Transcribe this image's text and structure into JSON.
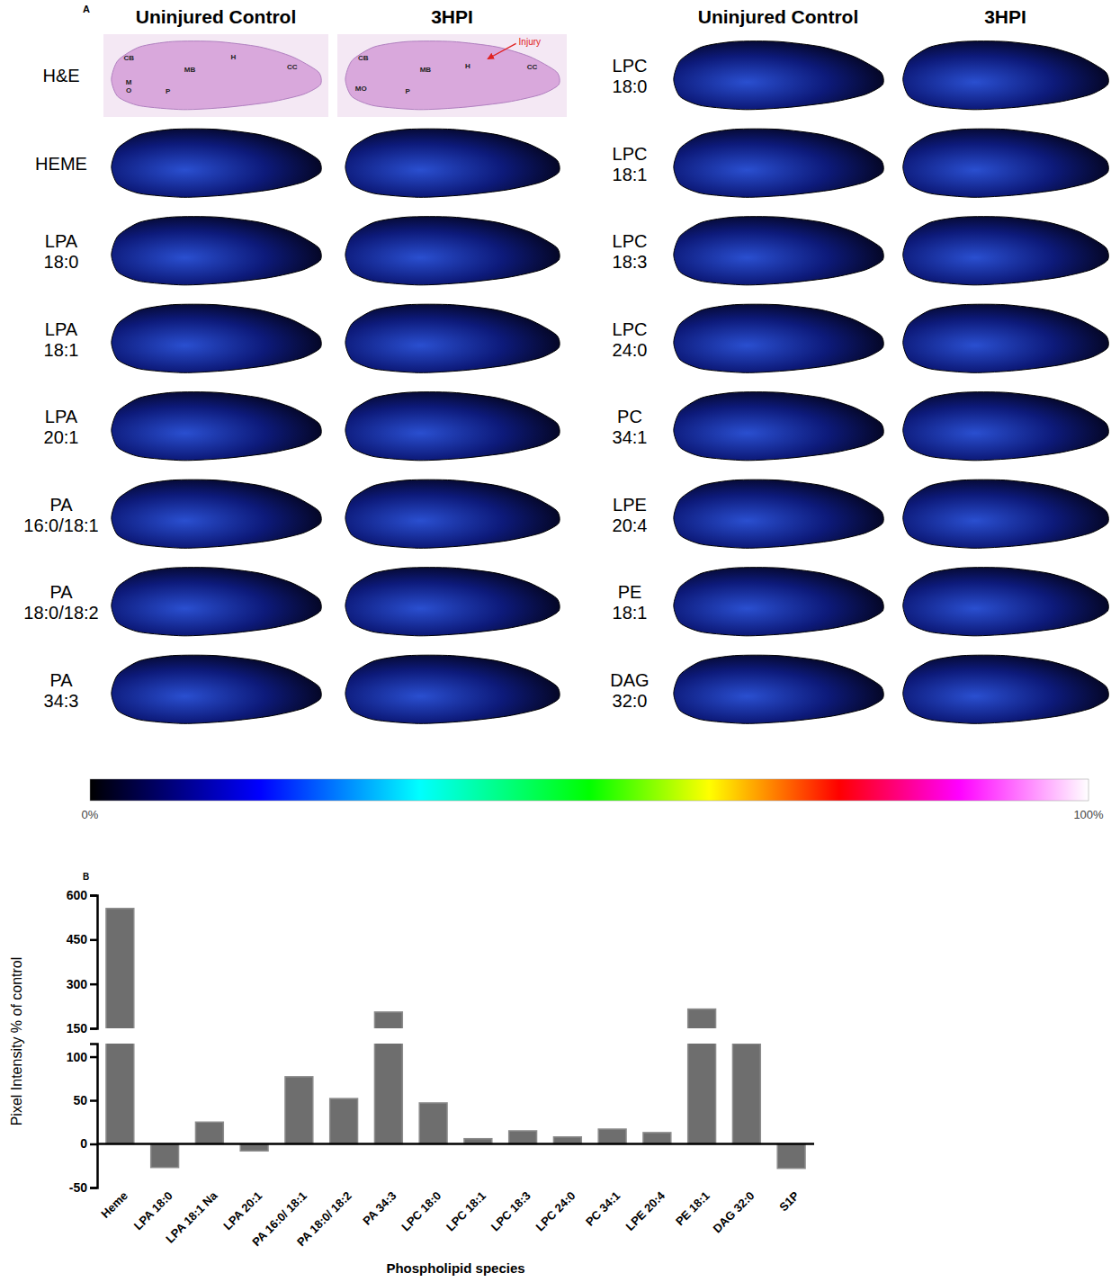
{
  "panel_a": {
    "letter": "A",
    "column_heads": [
      "Uninjured Control",
      "3HPI",
      "Uninjured Control",
      "3HPI"
    ],
    "row_labels_left": [
      "H&E",
      "HEME",
      "LPA 18:0",
      "LPA 18:1",
      "LPA 20:1",
      "PA 16:0/18:1",
      "PA 18:0/18:2",
      "PA 34:3"
    ],
    "row_labels_right": [
      "LPC 18:0",
      "LPC 18:1",
      "LPC 18:3",
      "LPC 24:0",
      "PC 34:1",
      "LPE 20:4",
      "PE 18:1",
      "DAG 32:0"
    ],
    "he_labels_control": [
      "CB",
      "MB",
      "H",
      "CC",
      "M O",
      "P"
    ],
    "he_labels_injured": [
      "CB",
      "MB",
      "H",
      "CC",
      "MO",
      "P"
    ],
    "injury_label": "Injury",
    "colorbar": {
      "range": [
        0,
        100
      ],
      "ticks": [
        {
          "value": 0,
          "label": "0%"
        },
        {
          "value": 100,
          "label": "100%"
        }
      ]
    }
  },
  "panel_b": {
    "letter": "B"
  },
  "chart_data": {
    "type": "bar",
    "x_label": "Phospholipid species",
    "y_label": "Pixel Intensity % of control",
    "categories": [
      "Heme",
      "LPA 18:0",
      "LPA 18:1 Na",
      "LPA 20:1",
      "PA 16:0/ 18:1",
      "PA 18:0/ 18:2",
      "PA 34:3",
      "LPC 18:0",
      "LPC 18:1",
      "LPC 18:3",
      "LPC 24:0",
      "PC 34:1",
      "LPE 20:4",
      "PE 18:1",
      "DAG 32:0",
      "S1P"
    ],
    "values": [
      555,
      -27,
      25,
      -8,
      77,
      52,
      205,
      47,
      6,
      15,
      8,
      17,
      13,
      215,
      115,
      -28
    ],
    "color": "#6e6e6e",
    "ylim": [
      -50,
      600
    ],
    "y_break": [
      115,
      150
    ],
    "yticks": [
      -50,
      0,
      50,
      100,
      150,
      300,
      450,
      600
    ],
    "grid": false
  }
}
